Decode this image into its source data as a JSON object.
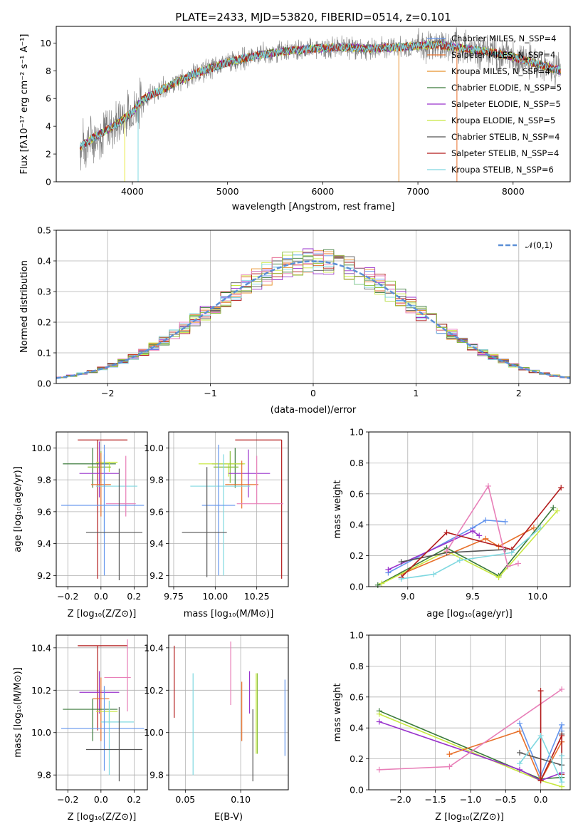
{
  "colors": {
    "chabrier_miles": "#6495ed",
    "salpeter_miles": "#e8702a",
    "kroupa_miles": "#e8902a",
    "chabrier_elodie": "#3a7a3a",
    "salpeter_elodie": "#9932cc",
    "kroupa_elodie": "#c8e840",
    "chabrier_stelib": "#555555",
    "salpeter_stelib": "#b21a1a",
    "kroupa_stelib": "#7fd8e0",
    "extra_pink": "#e87fb8",
    "extra_olive": "#8bbf3c",
    "normal": "#5b8fd6"
  },
  "chart_data": [
    {
      "id": "spectrum",
      "type": "line",
      "title": "PLATE=2433, MJD=53820, FIBERID=0514, z=0.101",
      "xlabel": "wavelength [Angstrom, rest frame]",
      "ylabel": "Flux [fλ10⁻¹⁷ erg cm⁻² s⁻¹ A⁻¹]",
      "xlim": [
        3200,
        8600
      ],
      "ylim": [
        0,
        11.2
      ],
      "xticks": [
        "4000",
        "5000",
        "6000",
        "7000",
        "8000"
      ],
      "yticks": [
        "0",
        "2",
        "4",
        "6",
        "8",
        "10"
      ],
      "continuum": {
        "x": [
          3450,
          3600,
          3800,
          4000,
          4100,
          4300,
          4500,
          4700,
          5000,
          5300,
          5600,
          5900,
          6200,
          6500,
          6800,
          7000,
          7200,
          7400,
          7600,
          7800,
          8000,
          8300,
          8500
        ],
        "y": [
          2.5,
          3.2,
          4.0,
          5.0,
          5.9,
          6.6,
          7.3,
          7.9,
          8.6,
          9.1,
          9.4,
          9.6,
          9.7,
          9.6,
          9.7,
          9.8,
          9.9,
          9.7,
          9.5,
          9.3,
          9.0,
          8.4,
          8.0
        ]
      },
      "legend": [
        "Chabrier MILES, N_SSP=4",
        "Salpeter MILES, N_SSP=4",
        "Kroupa MILES, N_SSP=4",
        "Chabrier ELODIE, N_SSP=5",
        "Salpeter ELODIE, N_SSP=5",
        "Kroupa ELODIE, N_SSP=5",
        "Chabrier STELIB, N_SSP=4",
        "Salpeter STELIB, N_SSP=4",
        "Kroupa STELIB, N_SSP=6"
      ],
      "legend_location": "right"
    },
    {
      "id": "residuals",
      "type": "histogram",
      "xlabel": "(data-model)/error",
      "ylabel": "Normed distribution",
      "xlim": [
        -2.5,
        2.5
      ],
      "ylim": [
        0,
        0.5
      ],
      "xticks": [
        "−2",
        "−1",
        "0",
        "1",
        "2"
      ],
      "yticks": [
        "0.0",
        "0.1",
        "0.2",
        "0.3",
        "0.4",
        "0.5"
      ],
      "legend": [
        "𝒩(0,1)"
      ],
      "legend_location": "top-right",
      "grid": true
    },
    {
      "id": "age_vs_Z",
      "type": "errorbar",
      "xlabel": "Z [log₁₀(Z/Z⊙)]",
      "ylabel": "age  [log₁₀(age/yr)]",
      "xlim": [
        -0.27,
        0.28
      ],
      "ylim": [
        9.13,
        10.1
      ],
      "xticks": [
        "−0.2",
        "0.0",
        "0.2"
      ],
      "yticks": [
        "9.2",
        "9.4",
        "9.6",
        "9.8",
        "10.0"
      ],
      "grid": true,
      "points": [
        {
          "x": -0.02,
          "y": 10.05,
          "xerr": [
            0.12,
            0.18
          ],
          "yerr": [
            0.87,
            0.0
          ],
          "color": "salpeter_stelib"
        },
        {
          "x": -0.05,
          "y": 9.9,
          "xerr": [
            0.18,
            0.14
          ],
          "yerr": [
            0.15,
            0.1
          ],
          "color": "chabrier_elodie"
        },
        {
          "x": 0.05,
          "y": 9.91,
          "xerr": [
            0.08,
            0.05
          ],
          "yerr": [
            0.06,
            0.0
          ],
          "color": "kroupa_elodie"
        },
        {
          "x": 0.0,
          "y": 9.88,
          "xerr": [
            0.08,
            0.06
          ],
          "yerr": [
            0.1,
            0.1
          ],
          "color": "extra_olive"
        },
        {
          "x": -0.01,
          "y": 9.84,
          "xerr": [
            0.12,
            0.12
          ],
          "yerr": [
            0.15,
            0.2
          ],
          "color": "salpeter_elodie"
        },
        {
          "x": 0.0,
          "y": 9.77,
          "xerr": [
            0.06,
            0.06
          ],
          "yerr": [
            0.2,
            0.2
          ],
          "color": "salpeter_miles"
        },
        {
          "x": 0.02,
          "y": 9.76,
          "xerr": [
            0.05,
            0.2
          ],
          "yerr": [
            0.3,
            0.2
          ],
          "color": "kroupa_stelib"
        },
        {
          "x": 0.15,
          "y": 9.65,
          "xerr": [
            0.12,
            0.06
          ],
          "yerr": [
            0.08,
            0.3
          ],
          "color": "extra_pink"
        },
        {
          "x": 0.02,
          "y": 9.64,
          "xerr": [
            0.26,
            0.24
          ],
          "yerr": [
            0.44,
            0.38
          ],
          "color": "chabrier_miles"
        },
        {
          "x": 0.11,
          "y": 9.47,
          "xerr": [
            0.2,
            0.14
          ],
          "yerr": [
            0.3,
            0.4
          ],
          "color": "chabrier_stelib"
        }
      ],
      "ellipse": null
    },
    {
      "id": "age_vs_mass",
      "type": "errorbar",
      "xlabel": "mass [log₁₀(M/M⊙)]",
      "xlim": [
        9.72,
        10.44
      ],
      "ylim": [
        9.13,
        10.1
      ],
      "xticks": [
        "9.75",
        "10.00",
        "10.25"
      ],
      "yticks": [
        "9.2",
        "9.4",
        "9.6",
        "9.8",
        "10.0"
      ],
      "grid": true,
      "points": [
        {
          "x": 10.4,
          "y": 10.05,
          "xerr": [
            0.28,
            0.0
          ],
          "yerr": [
            0.87,
            0.0
          ],
          "color": "salpeter_stelib"
        },
        {
          "x": 10.12,
          "y": 9.9,
          "xerr": [
            0.14,
            0.05
          ],
          "yerr": [
            0.15,
            0.1
          ],
          "color": "chabrier_elodie"
        },
        {
          "x": 10.08,
          "y": 9.9,
          "xerr": [
            0.18,
            0.1
          ],
          "yerr": [
            0.08,
            0.0
          ],
          "color": "kroupa_elodie"
        },
        {
          "x": 10.09,
          "y": 9.88,
          "xerr": [
            0.1,
            0.05
          ],
          "yerr": [
            0.1,
            0.1
          ],
          "color": "extra_olive"
        },
        {
          "x": 10.2,
          "y": 9.84,
          "xerr": [
            0.12,
            0.13
          ],
          "yerr": [
            0.15,
            0.15
          ],
          "color": "salpeter_elodie"
        },
        {
          "x": 10.16,
          "y": 9.77,
          "xerr": [
            0.1,
            0.1
          ],
          "yerr": [
            0.15,
            0.15
          ],
          "color": "salpeter_miles"
        },
        {
          "x": 10.05,
          "y": 9.76,
          "xerr": [
            0.2,
            0.16
          ],
          "yerr": [
            0.56,
            0.2
          ],
          "color": "kroupa_stelib"
        },
        {
          "x": 10.25,
          "y": 9.65,
          "xerr": [
            0.12,
            0.16
          ],
          "yerr": [
            0.0,
            0.3
          ],
          "color": "extra_pink"
        },
        {
          "x": 10.02,
          "y": 9.64,
          "xerr": [
            0.1,
            0.1
          ],
          "yerr": [
            0.44,
            0.38
          ],
          "color": "chabrier_miles"
        },
        {
          "x": 9.95,
          "y": 9.47,
          "xerr": [
            0.15,
            0.12
          ],
          "yerr": [
            0.28,
            0.41
          ],
          "color": "chabrier_stelib"
        }
      ]
    },
    {
      "id": "massweight_vs_age",
      "type": "line",
      "xlabel": "age  [log₁₀(age/yr)]",
      "ylabel": "mass weight",
      "xlim": [
        8.7,
        10.25
      ],
      "ylim": [
        0,
        1.0
      ],
      "xticks": [
        "9.0",
        "9.5",
        "10.0"
      ],
      "yticks": [
        "0.0",
        "0.2",
        "0.4",
        "0.6",
        "0.8",
        "1.0"
      ],
      "grid": true,
      "series": [
        {
          "color": "chabrier_miles",
          "x": [
            8.85,
            9.5,
            9.6,
            9.75
          ],
          "y": [
            0.09,
            0.38,
            0.43,
            0.42
          ]
        },
        {
          "color": "salpeter_miles",
          "x": [
            8.95,
            9.6,
            9.7,
            9.97
          ],
          "y": [
            0.08,
            0.31,
            0.26,
            0.38
          ]
        },
        {
          "color": "salpeter_elodie",
          "x": [
            8.85,
            9.5,
            9.55
          ],
          "y": [
            0.11,
            0.36,
            0.33
          ]
        },
        {
          "color": "chabrier_elodie",
          "x": [
            8.77,
            9.3,
            9.7,
            10.12
          ],
          "y": [
            0.01,
            0.25,
            0.07,
            0.51
          ]
        },
        {
          "color": "kroupa_elodie",
          "x": [
            8.8,
            9.3,
            9.7,
            10.15
          ],
          "y": [
            0.02,
            0.23,
            0.06,
            0.49
          ]
        },
        {
          "color": "chabrier_stelib",
          "x": [
            8.95,
            9.3,
            9.75
          ],
          "y": [
            0.16,
            0.22,
            0.24
          ]
        },
        {
          "color": "salpeter_stelib",
          "x": [
            8.95,
            9.3,
            9.8,
            10.18
          ],
          "y": [
            0.06,
            0.35,
            0.24,
            0.64
          ]
        },
        {
          "color": "kroupa_stelib",
          "x": [
            8.95,
            9.2,
            9.4,
            9.8,
            10.02
          ],
          "y": [
            0.05,
            0.08,
            0.17,
            0.22,
            0.38
          ]
        },
        {
          "color": "extra_pink",
          "x": [
            9.3,
            9.62,
            9.77,
            9.85
          ],
          "y": [
            0.23,
            0.65,
            0.13,
            0.15
          ]
        }
      ]
    },
    {
      "id": "mass_vs_Z",
      "type": "errorbar",
      "xlabel": "Z [log₁₀(Z/Z⊙)]",
      "ylabel": "mass [log₁₀(M/M⊙)]",
      "xlim": [
        -0.27,
        0.28
      ],
      "ylim": [
        9.73,
        10.46
      ],
      "xticks": [
        "−0.2",
        "0.0",
        "0.2"
      ],
      "yticks": [
        "9.8",
        "10.0",
        "10.2",
        "10.4"
      ],
      "grid": true,
      "points": [
        {
          "x": -0.02,
          "y": 10.41,
          "xerr": [
            0.12,
            0.18
          ],
          "yerr": [
            0.4,
            0.0
          ],
          "color": "salpeter_stelib"
        },
        {
          "x": 0.16,
          "y": 10.26,
          "xerr": [
            0.14,
            0.02
          ],
          "yerr": [
            0.16,
            0.18
          ],
          "color": "extra_pink"
        },
        {
          "x": -0.01,
          "y": 10.19,
          "xerr": [
            0.12,
            0.12
          ],
          "yerr": [
            0.1,
            0.1
          ],
          "color": "salpeter_elodie"
        },
        {
          "x": 0.0,
          "y": 10.16,
          "xerr": [
            0.05,
            0.05
          ],
          "yerr": [
            0.2,
            0.1
          ],
          "color": "salpeter_miles"
        },
        {
          "x": -0.05,
          "y": 10.11,
          "xerr": [
            0.18,
            0.15
          ],
          "yerr": [
            0.15,
            0.05
          ],
          "color": "chabrier_elodie"
        },
        {
          "x": 0.05,
          "y": 10.1,
          "xerr": [
            0.08,
            0.05
          ],
          "yerr": [
            0.06,
            0.05
          ],
          "color": "kroupa_elodie"
        },
        {
          "x": 0.05,
          "y": 10.05,
          "xerr": [
            0.05,
            0.15
          ],
          "yerr": [
            0.25,
            0.1
          ],
          "color": "kroupa_stelib"
        },
        {
          "x": 0.02,
          "y": 10.02,
          "xerr": [
            0.26,
            0.24
          ],
          "yerr": [
            0.2,
            0.2
          ],
          "color": "chabrier_miles"
        },
        {
          "x": 0.11,
          "y": 9.92,
          "xerr": [
            0.2,
            0.14
          ],
          "yerr": [
            0.15,
            0.2
          ],
          "color": "chabrier_stelib"
        }
      ]
    },
    {
      "id": "mass_vs_EBV",
      "type": "errorbar",
      "xlabel": "E(B-V)",
      "xlim": [
        0.035,
        0.143
      ],
      "ylim": [
        9.73,
        10.46
      ],
      "xticks": [
        "0.05",
        "0.10"
      ],
      "yticks": [
        "9.8",
        "10.0",
        "10.2",
        "10.4"
      ],
      "grid": true,
      "points": [
        {
          "x": 0.04,
          "y": 10.24,
          "yerr": [
            0.17,
            0.17
          ],
          "color": "salpeter_stelib"
        },
        {
          "x": 0.057,
          "y": 10.04,
          "yerr": [
            0.24,
            0.24
          ],
          "color": "kroupa_stelib"
        },
        {
          "x": 0.091,
          "y": 10.28,
          "yerr": [
            0.15,
            0.15
          ],
          "color": "extra_pink"
        },
        {
          "x": 0.101,
          "y": 10.1,
          "yerr": [
            0.14,
            0.14
          ],
          "color": "salpeter_miles"
        },
        {
          "x": 0.108,
          "y": 10.19,
          "yerr": [
            0.1,
            0.1
          ],
          "color": "salpeter_elodie"
        },
        {
          "x": 0.111,
          "y": 9.94,
          "yerr": [
            0.17,
            0.17
          ],
          "color": "chabrier_stelib"
        },
        {
          "x": 0.114,
          "y": 10.09,
          "yerr": [
            0.19,
            0.19
          ],
          "color": "kroupa_elodie"
        },
        {
          "x": 0.115,
          "y": 10.09,
          "yerr": [
            0.19,
            0.19
          ],
          "color": "extra_olive"
        },
        {
          "x": 0.14,
          "y": 10.07,
          "yerr": [
            0.18,
            0.18
          ],
          "color": "chabrier_miles"
        }
      ]
    },
    {
      "id": "massweight_vs_Z",
      "type": "line",
      "xlabel": "Z [log₁₀(Z/Z⊙)]",
      "ylabel": "mass weight",
      "xlim": [
        -2.45,
        0.42
      ],
      "ylim": [
        0,
        1.0
      ],
      "xticks": [
        "−2.0",
        "−1.5",
        "−1.0",
        "−0.5",
        "0.0"
      ],
      "yticks": [
        "0.0",
        "0.2",
        "0.4",
        "0.6",
        "0.8",
        "1.0"
      ],
      "grid": true,
      "series": [
        {
          "color": "chabrier_elodie",
          "x": [
            -2.3,
            0.0,
            0.3
          ],
          "y": [
            0.51,
            0.07,
            0.08
          ]
        },
        {
          "color": "kroupa_elodie",
          "x": [
            -2.3,
            0.0,
            0.3
          ],
          "y": [
            0.49,
            0.06,
            0.02
          ]
        },
        {
          "color": "salpeter_elodie",
          "x": [
            -2.3,
            -0.3,
            0.0,
            0.3
          ],
          "y": [
            0.44,
            0.13,
            0.06,
            0.11
          ]
        },
        {
          "color": "salpeter_miles",
          "x": [
            -1.3,
            -0.3,
            0.0,
            0.3
          ],
          "y": [
            0.23,
            0.38,
            0.06,
            0.31
          ]
        },
        {
          "color": "extra_pink",
          "x": [
            -2.3,
            -1.3,
            0.3
          ],
          "y": [
            0.13,
            0.15,
            0.65
          ]
        },
        {
          "color": "chabrier_miles",
          "x": [
            -0.3,
            0.0,
            0.3,
            0.3
          ],
          "y": [
            0.43,
            0.09,
            0.42,
            0.38
          ]
        },
        {
          "color": "chabrier_stelib",
          "x": [
            -0.3,
            0.3,
            0.3
          ],
          "y": [
            0.24,
            0.16,
            0.36
          ]
        },
        {
          "color": "salpeter_stelib",
          "x": [
            0.0,
            0.0,
            0.3,
            0.3
          ],
          "y": [
            0.64,
            0.06,
            0.35,
            0.1
          ]
        },
        {
          "color": "kroupa_stelib",
          "x": [
            -0.3,
            0.0,
            0.3,
            0.3
          ],
          "y": [
            0.17,
            0.35,
            0.05,
            0.22
          ]
        }
      ]
    }
  ]
}
